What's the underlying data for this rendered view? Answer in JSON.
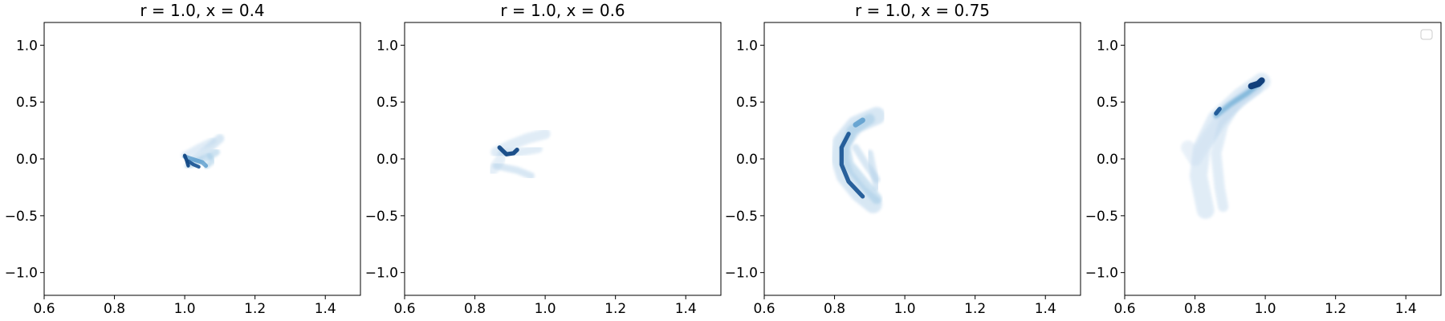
{
  "chart_data": [
    {
      "type": "heatmap",
      "title": "r = 1.0, x = 0.4",
      "xlim": [
        0.6,
        1.5
      ],
      "ylim": [
        -1.2,
        1.2
      ],
      "x_ticks": [
        0.6,
        0.8,
        1.0,
        1.2,
        1.4
      ],
      "y_ticks": [
        -1.0,
        -0.5,
        0.0,
        0.5,
        1.0
      ],
      "x_tick_labels": [
        "0.6",
        "0.8",
        "1.0",
        "1.2",
        "1.4"
      ],
      "y_tick_labels": [
        "−1.0",
        "−0.5",
        "0.0",
        "0.5",
        "1.0"
      ],
      "colormap": "Blues",
      "legend": false,
      "density_strokes": [
        {
          "points": [
            [
              1.02,
              -0.02
            ],
            [
              1.06,
              0.07
            ],
            [
              1.1,
              0.18
            ]
          ],
          "width": 0.025,
          "intensity": 0.2
        },
        {
          "points": [
            [
              1.0,
              0.03
            ],
            [
              1.04,
              0.1
            ],
            [
              1.08,
              0.16
            ]
          ],
          "width": 0.02,
          "intensity": 0.15
        },
        {
          "points": [
            [
              1.01,
              -0.06
            ],
            [
              1.04,
              -0.02
            ],
            [
              1.07,
              0.02
            ],
            [
              1.09,
              0.06
            ]
          ],
          "width": 0.02,
          "intensity": 0.25
        },
        {
          "points": [
            [
              1.06,
              -0.07
            ],
            [
              1.08,
              -0.02
            ],
            [
              1.07,
              0.03
            ]
          ],
          "width": 0.015,
          "intensity": 0.25
        },
        {
          "points": [
            [
              1.0,
              0.02
            ],
            [
              1.02,
              0.0
            ],
            [
              1.05,
              -0.03
            ],
            [
              1.06,
              -0.06
            ]
          ],
          "width": 0.012,
          "intensity": 0.55
        },
        {
          "points": [
            [
              1.01,
              -0.02
            ],
            [
              1.025,
              -0.05
            ],
            [
              1.04,
              -0.07
            ]
          ],
          "width": 0.01,
          "intensity": 0.85
        },
        {
          "points": [
            [
              1.0,
              0.03
            ],
            [
              1.005,
              -0.01
            ],
            [
              1.01,
              -0.06
            ]
          ],
          "width": 0.01,
          "intensity": 0.9
        }
      ]
    },
    {
      "type": "heatmap",
      "title": "r = 1.0, x = 0.6",
      "xlim": [
        0.6,
        1.5
      ],
      "ylim": [
        -1.2,
        1.2
      ],
      "x_ticks": [
        0.6,
        0.8,
        1.0,
        1.2,
        1.4
      ],
      "y_ticks": [
        -1.0,
        -0.5,
        0.0,
        0.5,
        1.0
      ],
      "x_tick_labels": [
        "0.6",
        "0.8",
        "1.0",
        "1.2",
        "1.4"
      ],
      "y_tick_labels": [
        "−1.0",
        "−0.5",
        "0.0",
        "0.5",
        "1.0"
      ],
      "colormap": "Blues",
      "legend": false,
      "density_strokes": [
        {
          "points": [
            [
              0.86,
              0.06
            ],
            [
              0.9,
              0.12
            ],
            [
              0.95,
              0.18
            ],
            [
              1.0,
              0.22
            ]
          ],
          "width": 0.03,
          "intensity": 0.15
        },
        {
          "points": [
            [
              0.85,
              -0.1
            ],
            [
              0.87,
              -0.02
            ],
            [
              0.88,
              0.05
            ]
          ],
          "width": 0.03,
          "intensity": 0.12
        },
        {
          "points": [
            [
              0.86,
              -0.06
            ],
            [
              0.92,
              -0.1
            ],
            [
              0.96,
              -0.15
            ]
          ],
          "width": 0.02,
          "intensity": 0.2
        },
        {
          "points": [
            [
              0.88,
              0.04
            ],
            [
              0.93,
              0.06
            ],
            [
              0.98,
              0.09
            ]
          ],
          "width": 0.025,
          "intensity": 0.15
        },
        {
          "points": [
            [
              0.87,
              0.1
            ],
            [
              0.88,
              0.07
            ],
            [
              0.89,
              0.04
            ],
            [
              0.91,
              0.05
            ],
            [
              0.92,
              0.08
            ]
          ],
          "width": 0.012,
          "intensity": 0.9
        }
      ]
    },
    {
      "type": "heatmap",
      "title": "r = 1.0, x = 0.75",
      "xlim": [
        0.6,
        1.5
      ],
      "ylim": [
        -1.2,
        1.2
      ],
      "x_ticks": [
        0.6,
        0.8,
        1.0,
        1.2,
        1.4
      ],
      "y_ticks": [
        -1.0,
        -0.5,
        0.0,
        0.5,
        1.0
      ],
      "x_tick_labels": [
        "0.6",
        "0.8",
        "1.0",
        "1.2",
        "1.4"
      ],
      "y_tick_labels": [
        "−1.0",
        "−0.5",
        "0.0",
        "0.5",
        "1.0"
      ],
      "colormap": "Blues",
      "legend": false,
      "density_strokes": [
        {
          "points": [
            [
              0.92,
              0.38
            ],
            [
              0.86,
              0.3
            ],
            [
              0.82,
              0.15
            ],
            [
              0.815,
              0.0
            ],
            [
              0.83,
              -0.15
            ],
            [
              0.87,
              -0.3
            ],
            [
              0.91,
              -0.4
            ]
          ],
          "width": 0.05,
          "intensity": 0.2
        },
        {
          "points": [
            [
              0.9,
              0.35
            ],
            [
              0.85,
              0.25
            ],
            [
              0.83,
              0.1
            ],
            [
              0.84,
              -0.05
            ],
            [
              0.88,
              -0.2
            ],
            [
              0.92,
              -0.35
            ]
          ],
          "width": 0.03,
          "intensity": 0.25
        },
        {
          "points": [
            [
              0.9,
              0.05
            ],
            [
              0.91,
              -0.1
            ],
            [
              0.92,
              -0.25
            ]
          ],
          "width": 0.02,
          "intensity": 0.2
        },
        {
          "points": [
            [
              0.86,
              0.1
            ],
            [
              0.89,
              -0.05
            ],
            [
              0.92,
              -0.18
            ]
          ],
          "width": 0.02,
          "intensity": 0.2
        },
        {
          "points": [
            [
              0.84,
              0.22
            ],
            [
              0.82,
              0.1
            ],
            [
              0.82,
              -0.05
            ],
            [
              0.84,
              -0.2
            ],
            [
              0.88,
              -0.33
            ]
          ],
          "width": 0.012,
          "intensity": 0.85
        },
        {
          "points": [
            [
              0.88,
              0.34
            ],
            [
              0.86,
              0.3
            ]
          ],
          "width": 0.015,
          "intensity": 0.55
        }
      ]
    },
    {
      "type": "heatmap",
      "title": "",
      "xlim": [
        0.6,
        1.5
      ],
      "ylim": [
        -1.2,
        1.2
      ],
      "x_ticks": [
        0.6,
        0.8,
        1.0,
        1.2,
        1.4
      ],
      "y_ticks": [
        -1.0,
        -0.5,
        0.0,
        0.5,
        1.0
      ],
      "x_tick_labels": [
        "0.6",
        "0.8",
        "1.0",
        "1.2",
        "1.4"
      ],
      "y_tick_labels": [
        "−1.0",
        "−0.5",
        "0.0",
        "0.5",
        "1.0"
      ],
      "colormap": "Blues",
      "legend": true,
      "legend_position": "upper right",
      "legend_entries": [],
      "density_strokes": [
        {
          "points": [
            [
              0.99,
              0.68
            ],
            [
              0.93,
              0.55
            ],
            [
              0.86,
              0.35
            ],
            [
              0.82,
              0.1
            ],
            [
              0.81,
              -0.15
            ],
            [
              0.83,
              -0.45
            ]
          ],
          "width": 0.05,
          "intensity": 0.15
        },
        {
          "points": [
            [
              0.97,
              0.62
            ],
            [
              0.9,
              0.45
            ],
            [
              0.84,
              0.2
            ],
            [
              0.8,
              0.0
            ],
            [
              0.78,
              0.1
            ]
          ],
          "width": 0.04,
          "intensity": 0.1
        },
        {
          "points": [
            [
              0.98,
              0.64
            ],
            [
              0.92,
              0.5
            ],
            [
              0.88,
              0.3
            ],
            [
              0.86,
              0.05
            ],
            [
              0.87,
              -0.25
            ],
            [
              0.88,
              -0.42
            ]
          ],
          "width": 0.03,
          "intensity": 0.15
        },
        {
          "points": [
            [
              0.99,
              0.68
            ],
            [
              0.95,
              0.58
            ],
            [
              0.9,
              0.48
            ],
            [
              0.86,
              0.38
            ]
          ],
          "width": 0.015,
          "intensity": 0.45
        },
        {
          "points": [
            [
              0.99,
              0.69
            ],
            [
              0.98,
              0.66
            ],
            [
              0.96,
              0.64
            ]
          ],
          "width": 0.018,
          "intensity": 0.95
        },
        {
          "points": [
            [
              0.87,
              0.44
            ],
            [
              0.86,
              0.4
            ]
          ],
          "width": 0.012,
          "intensity": 0.85
        }
      ]
    }
  ]
}
